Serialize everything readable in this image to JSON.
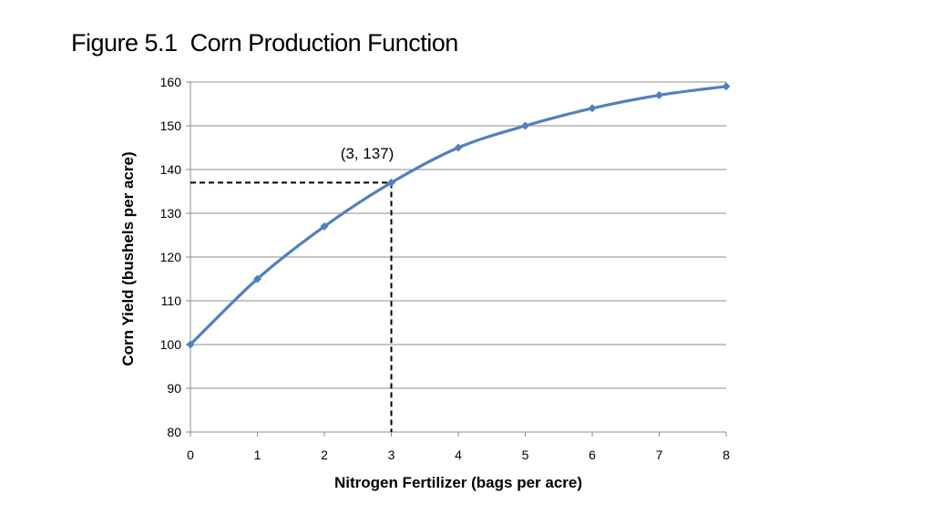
{
  "slide": {
    "title": "Figure 5.1  Corn Production Function"
  },
  "chart_data": {
    "type": "line",
    "title": "Figure 5.1  Corn Production Function",
    "xlabel": "Nitrogen Fertilizer (bags per acre)",
    "ylabel": "Corn Yield (bushels per acre)",
    "xlim": [
      0,
      8
    ],
    "ylim": [
      80,
      160
    ],
    "xticks": [
      0,
      1,
      2,
      3,
      4,
      5,
      6,
      7,
      8
    ],
    "yticks": [
      80,
      90,
      100,
      110,
      120,
      130,
      140,
      150,
      160
    ],
    "grid": "horizontal",
    "legend": "none",
    "series": [
      {
        "color": "#4F81BD",
        "marker": "diamond",
        "smooth": true,
        "x": [
          0,
          1,
          2,
          3,
          4,
          5,
          6,
          7,
          8
        ],
        "y": [
          100,
          115,
          127,
          137,
          145,
          150,
          154,
          157,
          159
        ]
      }
    ],
    "annotation": {
      "label": "(3, 137)",
      "x": 3,
      "y": 137,
      "guide_lines": "dashed"
    }
  }
}
